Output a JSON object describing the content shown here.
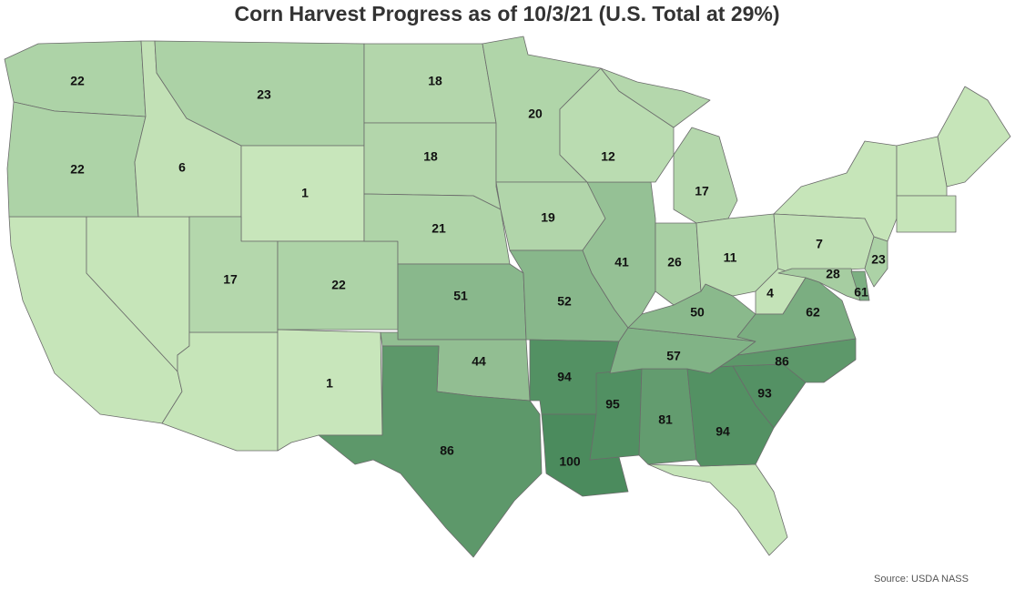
{
  "title": "Corn Harvest Progress as of 10/3/21 (U.S. Total at 29%)",
  "source": "Source: USDA NASS",
  "values": [
    22,
    22,
    6,
    23,
    1,
    17,
    22,
    1,
    18,
    18,
    21,
    51,
    44,
    86,
    20,
    19,
    52,
    94,
    100,
    95,
    81,
    94,
    93,
    86,
    57,
    50,
    41,
    12,
    17,
    26,
    11,
    7,
    23,
    4,
    28,
    61,
    62
  ]
}
